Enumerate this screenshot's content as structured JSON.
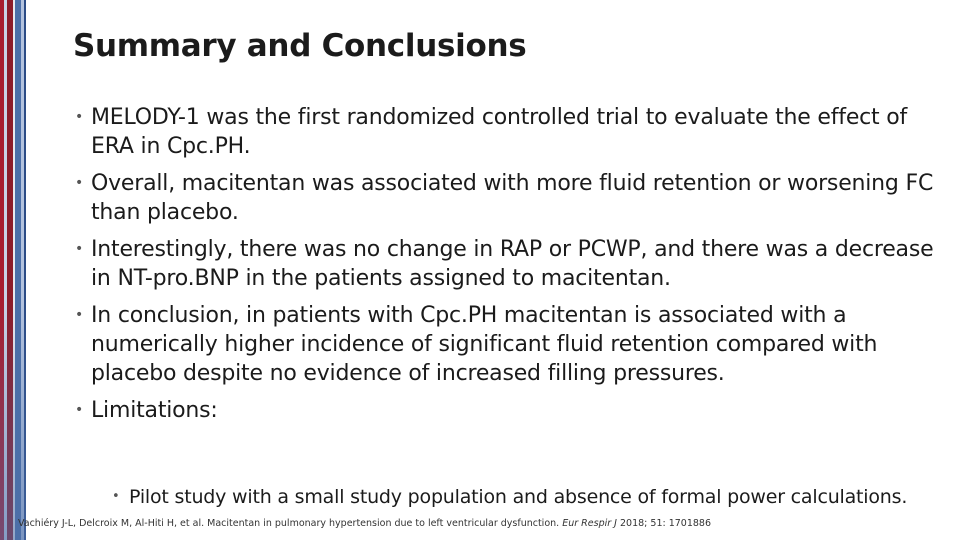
{
  "title": "Summary and Conclusions",
  "bullets": [
    "MELODY-1 was the first randomized controlled trial to evaluate the effect of ERA in Cpc.PH.",
    "Overall, macitentan was associated with more fluid retention or worsening FC than placebo.",
    "Interestingly, there was no change in RAP or PCWP, and there was a decrease in NT-pro.BNP in the patients assigned to macitentan.",
    "In conclusion, in patients with Cpc.PH macitentan is associated with a numerically higher incidence of significant fluid retention compared with placebo despite no evidence of increased filling pressures.",
    "Limitations:"
  ],
  "sub_bullets": [
    "Pilot study with a small study population and absence of formal power calculations."
  ],
  "citation": {
    "authors": "Vachiéry J-L, Delcroix M, Al-Hiti H, et al. Macitentan in pulmonary hypertension due to left ventricular dysfunction.",
    "journal": "Eur Respir J",
    "details": "2018; 51: 1701886"
  },
  "colors": {
    "stripe_red": "#a71d2f",
    "stripe_blue": "#4b6fa8"
  }
}
